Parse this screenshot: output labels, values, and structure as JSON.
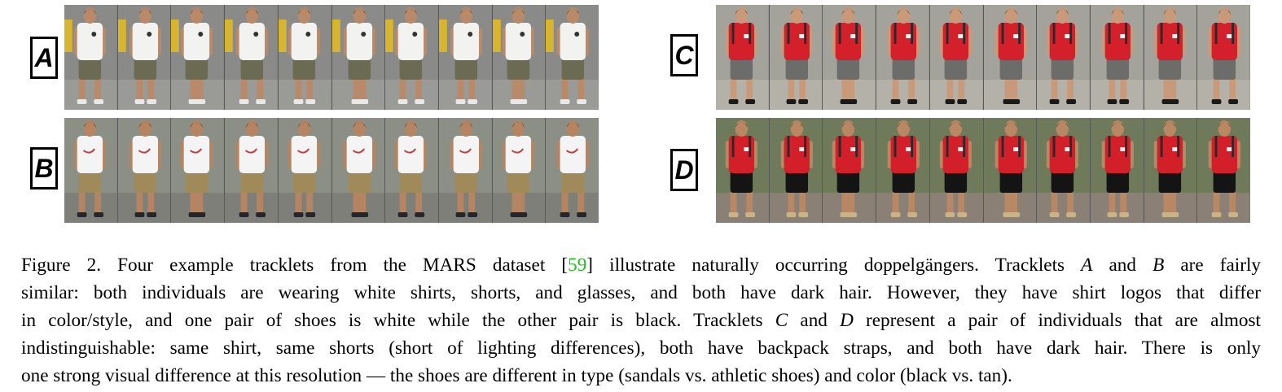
{
  "figure": {
    "panels": [
      {
        "id": "A",
        "label": "A",
        "frames": 10,
        "colors": {
          "bg": "#8a8a88",
          "shirt": "#f2f2f0",
          "shorts": "#6b6a52",
          "skin": "#b88a6a",
          "hair": "#1c1a18",
          "shoes": "#e8e8e8",
          "ground": "#9a9a96",
          "extra": "#d8b52e"
        }
      },
      {
        "id": "B",
        "label": "B",
        "frames": 10,
        "colors": {
          "bg": "#8c8f86",
          "shirt": "#f4f4f4",
          "shorts": "#a18a5a",
          "skin": "#b58563",
          "hair": "#171513",
          "shoes": "#23262a",
          "ground": "#7f7f7a",
          "extra": "#c23c3c"
        }
      },
      {
        "id": "C",
        "label": "C",
        "frames": 10,
        "colors": {
          "bg": "#a3a39c",
          "shirt": "#d3202a",
          "shorts": "#6c6c6a",
          "skin": "#c89a7a",
          "hair": "#181614",
          "shoes": "#1a1a1a",
          "ground": "#b4b2a8",
          "extra": "#2a2a2a"
        }
      },
      {
        "id": "D",
        "label": "D",
        "frames": 10,
        "colors": {
          "bg": "#6f7a5a",
          "shirt": "#d31f2a",
          "shorts": "#141414",
          "skin": "#b88764",
          "hair": "#141210",
          "shoes": "#c9b48a",
          "ground": "#8a8076",
          "extra": "#2a2a2a"
        }
      }
    ]
  },
  "caption": {
    "lines": [
      [
        {
          "t": "Figure 2. Four example tracklets from the MARS dataset ["
        },
        {
          "t": "59",
          "cls": "cite"
        },
        {
          "t": "] illustrate naturally occurring doppelgängers. Tracklets "
        },
        {
          "t": "A",
          "cls": "var"
        },
        {
          "t": " and "
        },
        {
          "t": "B",
          "cls": "var"
        },
        {
          "t": " are fairly"
        }
      ],
      [
        {
          "t": "similar: both individuals are wearing white shirts, shorts, and glasses, and both have dark hair. However, they have shirt logos that differ"
        }
      ],
      [
        {
          "t": "in color/style, and one pair of shoes is white while the other pair is black. Tracklets "
        },
        {
          "t": "C",
          "cls": "var"
        },
        {
          "t": " and "
        },
        {
          "t": "D",
          "cls": "var"
        },
        {
          "t": " represent a pair of individuals that are almost"
        }
      ],
      [
        {
          "t": "indistinguishable: same shirt, same shorts (short of lighting differences), both have backpack straps, and both have dark hair. There is only"
        }
      ],
      [
        {
          "t": "one strong visual difference at this resolution — the shoes are different in type (sandals vs. athletic shoes) and color (black vs. tan)."
        }
      ]
    ]
  }
}
